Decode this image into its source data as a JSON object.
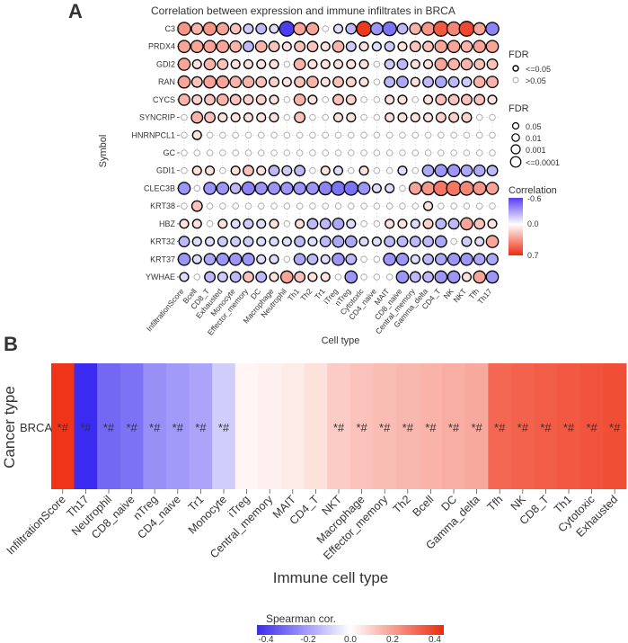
{
  "colors": {
    "negative": "#3b2bf0",
    "neutral": "#ffffff",
    "positive": "#ee2a0e"
  },
  "chart_data": [
    {
      "panel_label": "A",
      "type": "heatmap",
      "subtype": "bubble",
      "title": "Correlation between expression and immune infiltrates in BRCA",
      "xlabel": "Cell type",
      "ylabel": "Symbol",
      "rows": [
        "C3",
        "PRDX4",
        "GDI2",
        "RAN",
        "CYCS",
        "SYNCRIP",
        "HNRNPCL1",
        "GC",
        "GDI1",
        "CLEC3B",
        "KRT38",
        "HBZ",
        "KRT32",
        "KRT37",
        "YWHAE"
      ],
      "columns": [
        "InfiltrationScore",
        "Bcell",
        "CD8_T",
        "Exhausted",
        "Monocyte",
        "Effector_memory",
        "DC",
        "Macrophage",
        "Neutrophil",
        "Th1",
        "Th2",
        "Tr1",
        "iTreg",
        "nTreg",
        "Cytotoxic",
        "CD4_naive",
        "MAIT",
        "CD8_naive",
        "Central_memory",
        "Gamma_delta",
        "CD4_T",
        "NK",
        "NKT",
        "Tfh",
        "Th17"
      ],
      "values": [
        [
          0.35,
          0.25,
          0.35,
          0.3,
          0.2,
          -0.15,
          -0.2,
          -0.1,
          -0.55,
          0.3,
          0.3,
          0.05,
          -0.1,
          -0.2,
          0.65,
          -0.3,
          -0.4,
          -0.2,
          0.25,
          0.35,
          0.55,
          0.4,
          0.6,
          0.3,
          -0.35
        ],
        [
          0.3,
          0.3,
          0.3,
          0.3,
          0.25,
          -0.2,
          0.25,
          0.2,
          0.1,
          0.2,
          0.2,
          0.1,
          0.25,
          -0.15,
          0.1,
          -0.1,
          -0.15,
          0.1,
          0.2,
          0.2,
          0.3,
          0.3,
          0.25,
          0.3,
          0.3
        ],
        [
          0.3,
          0.1,
          0.25,
          0.2,
          0.1,
          0.1,
          0.1,
          0.1,
          0.05,
          0.25,
          0.1,
          0.1,
          0.1,
          0.1,
          0.1,
          0.05,
          -0.15,
          -0.2,
          0.1,
          0.1,
          0.3,
          0.25,
          0.25,
          0.2,
          0.2
        ],
        [
          0.3,
          0.2,
          0.3,
          0.3,
          0.25,
          0.25,
          0.2,
          0.15,
          0.1,
          0.2,
          0.25,
          0.1,
          0.2,
          0.15,
          0.1,
          0.05,
          -0.2,
          -0.25,
          0.1,
          -0.2,
          -0.25,
          -0.2,
          -0.15,
          0.25,
          0.25
        ],
        [
          0.25,
          0.15,
          0.2,
          0.25,
          0.2,
          0.15,
          0.15,
          0.1,
          0.05,
          0.25,
          0.1,
          0.05,
          0.2,
          0.15,
          0.05,
          0.05,
          0.1,
          0.1,
          0.05,
          0.1,
          0.2,
          0.2,
          0.2,
          0.2,
          0.1
        ],
        [
          0.05,
          0.25,
          0.2,
          0.1,
          0.1,
          0.1,
          0.1,
          0.1,
          0.05,
          0.2,
          0.05,
          0.05,
          0.1,
          0.1,
          0.05,
          0.05,
          0.1,
          0.1,
          0.1,
          0.1,
          0.15,
          0.15,
          0.15,
          0.05,
          0.05
        ],
        [
          0.02,
          0.1,
          0.02,
          0.02,
          0.02,
          0.02,
          0.02,
          0.02,
          0.02,
          0.02,
          0.02,
          0.02,
          0.02,
          0.02,
          0.02,
          0.02,
          0.02,
          0.02,
          0.02,
          0.02,
          0.02,
          0.02,
          0.02,
          0.02,
          0.02
        ],
        [
          0.02,
          0.02,
          0.02,
          0.02,
          0.02,
          0.02,
          0.02,
          0.02,
          0.02,
          0.02,
          0.02,
          0.02,
          0.02,
          0.02,
          0.02,
          0.02,
          0.02,
          0.02,
          0.02,
          0.02,
          0.02,
          0.02,
          0.02,
          0.02,
          0.02
        ],
        [
          0.05,
          0.1,
          0.1,
          0.05,
          0.1,
          0.2,
          0.1,
          -0.2,
          -0.15,
          -0.2,
          0.05,
          0.1,
          -0.1,
          0.05,
          0.1,
          0.05,
          0.05,
          -0.1,
          0.05,
          -0.25,
          -0.3,
          -0.3,
          -0.25,
          -0.25,
          -0.2
        ],
        [
          -0.3,
          0.05,
          -0.3,
          -0.3,
          -0.2,
          -0.35,
          -0.3,
          -0.3,
          -0.3,
          -0.3,
          -0.3,
          -0.35,
          -0.4,
          -0.4,
          -0.3,
          -0.1,
          -0.1,
          0.05,
          0.3,
          0.35,
          0.45,
          0.45,
          0.4,
          0.35,
          0.3
        ],
        [
          0.05,
          0.2,
          0.05,
          0.05,
          0.05,
          0.05,
          0.05,
          0.05,
          0.05,
          0.05,
          0.05,
          0.05,
          0.05,
          0.05,
          0.05,
          0.05,
          0.05,
          0.05,
          0.05,
          0.1,
          0.05,
          0.05,
          0.05,
          0.05,
          0.05
        ],
        [
          0.1,
          0.1,
          0.05,
          0.1,
          -0.1,
          -0.15,
          -0.1,
          0.1,
          0.05,
          0.1,
          -0.2,
          -0.2,
          -0.25,
          -0.1,
          0.05,
          0.05,
          0.1,
          0.1,
          -0.1,
          0.15,
          -0.2,
          -0.2,
          0.3,
          0.2,
          0.1
        ],
        [
          -0.2,
          -0.1,
          -0.1,
          -0.15,
          -0.15,
          -0.15,
          -0.1,
          -0.1,
          -0.1,
          -0.2,
          -0.1,
          -0.2,
          -0.25,
          -0.25,
          -0.1,
          -0.1,
          -0.2,
          -0.2,
          -0.2,
          -0.2,
          -0.25,
          0.05,
          -0.15,
          -0.1,
          0.3
        ],
        [
          -0.3,
          -0.1,
          -0.25,
          -0.3,
          -0.3,
          -0.3,
          -0.1,
          -0.1,
          0.05,
          -0.25,
          -0.2,
          -0.1,
          -0.3,
          -0.2,
          -0.05,
          -0.05,
          -0.3,
          -0.3,
          -0.1,
          -0.2,
          -0.25,
          -0.3,
          -0.3,
          -0.25,
          -0.25
        ],
        [
          -0.1,
          0.05,
          -0.2,
          -0.15,
          -0.2,
          0.2,
          -0.2,
          0.1,
          0.3,
          0.2,
          0.1,
          0.1,
          0.05,
          -0.3,
          0.05,
          0.05,
          0.05,
          -0.3,
          -0.2,
          -0.2,
          -0.3,
          -0.3,
          0.1,
          0.3,
          -0.3
        ]
      ],
      "fdr_legend": {
        "title": "FDR",
        "entries": [
          "<=0.05",
          ">0.05"
        ]
      },
      "size_legend": {
        "title": "FDR",
        "entries": [
          "0.05",
          "0.01",
          "0.001",
          "<=0.0001"
        ]
      },
      "color_legend": {
        "title": "Correlation",
        "ticks": [
          "-0.6",
          "0.0",
          "0.7"
        ]
      }
    },
    {
      "panel_label": "B",
      "type": "heatmap",
      "xlabel": "Immune cell type",
      "ylabel": "Cancer type",
      "row": "BRCA",
      "categories": [
        "InfiltrationScore",
        "Th17",
        "Neutrophil",
        "CD8_naive",
        "nTreg",
        "CD4_naive",
        "Tr1",
        "Monocyte",
        "iTreg",
        "Central_memory",
        "MAIT",
        "CD4_T",
        "NKT",
        "Macrophage",
        "Effector_memory",
        "Th2",
        "Bcell",
        "DC",
        "Gamma_delta",
        "Tfh",
        "NK",
        "CD8_T",
        "Th1",
        "Cytotoxic",
        "Exhausted"
      ],
      "values": [
        0.4,
        -0.42,
        -0.3,
        -0.28,
        -0.22,
        -0.2,
        -0.18,
        -0.1,
        0.02,
        0.03,
        0.04,
        0.06,
        0.1,
        0.12,
        0.13,
        0.14,
        0.15,
        0.16,
        0.17,
        0.3,
        0.31,
        0.32,
        0.33,
        0.34,
        0.35
      ],
      "cell_labels": [
        "*#",
        "*#",
        "*#",
        "*#",
        "*#",
        "*#",
        "*#",
        "*#",
        "",
        "",
        "",
        "",
        "*#",
        "*#",
        "*#",
        "*#",
        "*#",
        "*#",
        "*#",
        "*#",
        "*#",
        "*#",
        "*#",
        "*#",
        "*#"
      ],
      "legend": {
        "title": "Spearman cor.",
        "ticks": [
          "-0.4",
          "-0.2",
          "0.0",
          "0.2",
          "0.4"
        ]
      }
    }
  ]
}
